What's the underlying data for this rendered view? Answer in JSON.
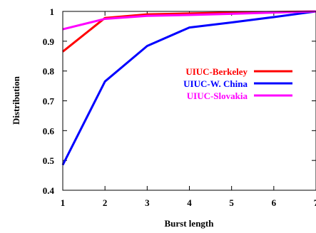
{
  "chart_data": {
    "type": "line",
    "title": "",
    "xlabel": "Burst length",
    "ylabel": "Distribution",
    "x": [
      1,
      2,
      3,
      4,
      5,
      6,
      7
    ],
    "xlim": [
      1,
      7
    ],
    "ylim": [
      0.4,
      1
    ],
    "xticks": [
      "1",
      "2",
      "3",
      "4",
      "5",
      "6",
      "7"
    ],
    "yticks": [
      "0.4",
      "0.5",
      "0.6",
      "0.7",
      "0.8",
      "0.9",
      "1"
    ],
    "ytick_values": [
      0.4,
      0.5,
      0.6,
      0.7,
      0.8,
      0.9,
      1.0
    ],
    "grid": false,
    "legend_position": "right",
    "series": [
      {
        "name": "UIUC-Berkeley",
        "color": "#ff0000",
        "values": [
          0.865,
          0.978,
          0.99,
          0.993,
          0.996,
          0.998,
          1.0
        ]
      },
      {
        "name": "UIUC-W. China",
        "color": "#0000ff",
        "values": [
          0.485,
          0.765,
          0.884,
          0.946,
          0.963,
          0.981,
          1.0
        ]
      },
      {
        "name": "UIUC-Slovakia",
        "color": "#ff00ff",
        "values": [
          0.94,
          0.975,
          0.985,
          0.988,
          0.992,
          0.996,
          1.0
        ]
      }
    ]
  }
}
